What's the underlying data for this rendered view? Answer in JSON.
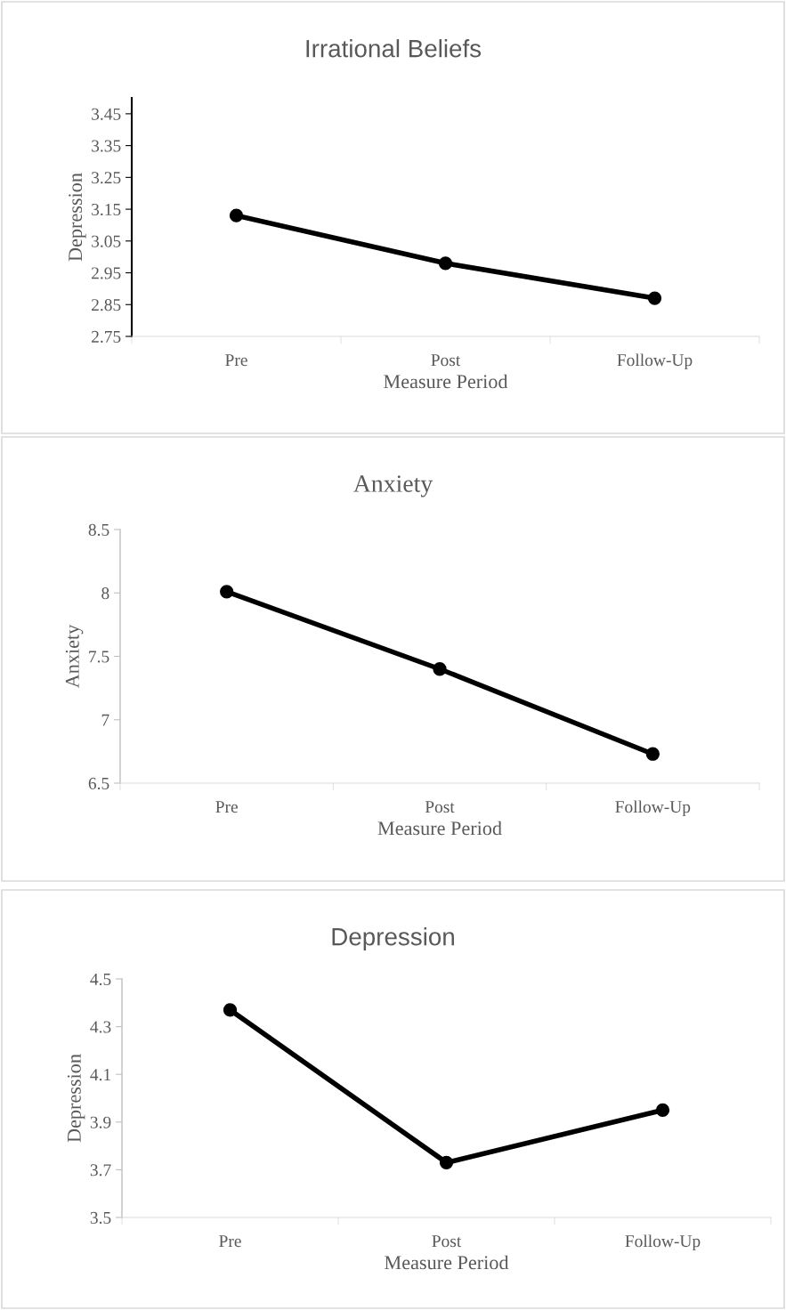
{
  "chart_data": [
    {
      "type": "line",
      "title": "Irrational Beliefs",
      "xlabel": "Measure Period",
      "ylabel": "Depression",
      "categories": [
        "Pre",
        "Post",
        "Follow-Up"
      ],
      "series": [
        {
          "color": "#000000",
          "values": [
            3.13,
            2.98,
            2.87
          ]
        }
      ],
      "ylim": [
        2.75,
        3.5
      ],
      "yticks": [
        2.75,
        2.85,
        2.95,
        3.05,
        3.15,
        3.25,
        3.35,
        3.45
      ],
      "marker": "circle",
      "line_style": "solid",
      "grid": false
    },
    {
      "type": "line",
      "title": "Anxiety",
      "xlabel": "Measure Period",
      "ylabel": "Anxiety",
      "categories": [
        "Pre",
        "Post",
        "Follow-Up"
      ],
      "series": [
        {
          "color": "#000000",
          "values": [
            8.01,
            7.4,
            6.73
          ]
        }
      ],
      "ylim": [
        6.5,
        8.5
      ],
      "yticks": [
        6.5,
        7,
        7.5,
        8,
        8.5
      ],
      "marker": "circle",
      "line_style": "solid",
      "grid": false
    },
    {
      "type": "line",
      "title": "Depression",
      "xlabel": "Measure Period",
      "ylabel": "Depression",
      "categories": [
        "Pre",
        "Post",
        "Follow-Up"
      ],
      "series": [
        {
          "color": "#000000",
          "values": [
            4.37,
            3.73,
            3.95
          ]
        }
      ],
      "ylim": [
        3.5,
        4.5
      ],
      "yticks": [
        3.5,
        3.7,
        3.9,
        4.1,
        4.3,
        4.5
      ],
      "marker": "circle",
      "line_style": "solid",
      "grid": false
    }
  ]
}
